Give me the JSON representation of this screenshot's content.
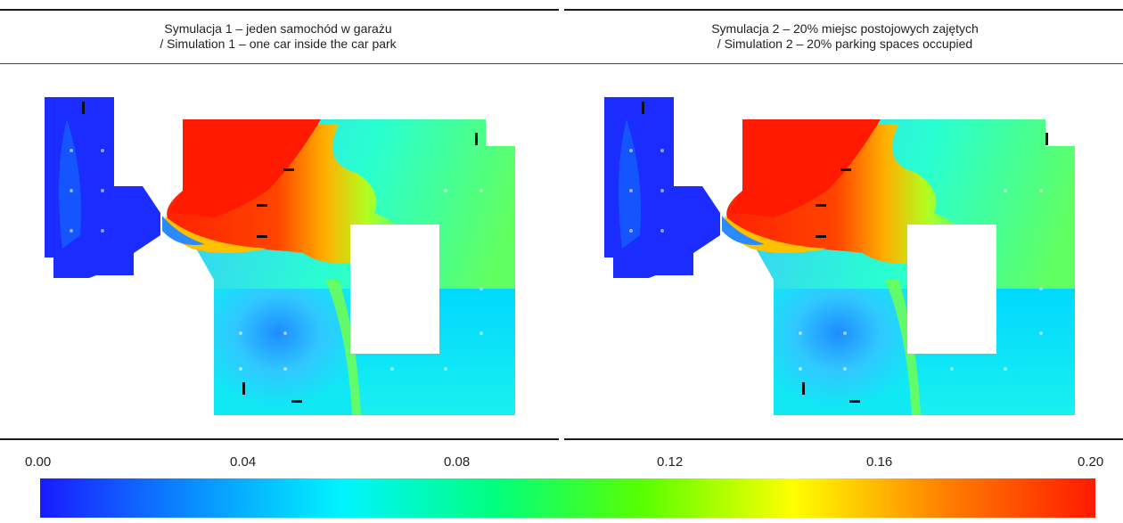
{
  "captions": {
    "sim1": {
      "line1": "Symulacja 1 – jeden samochód w garażu",
      "line2": "/ Simulation 1 – one car inside the car park"
    },
    "sim2": {
      "line1": "Symulacja 2 – 20% miejsc postojowych zajętych",
      "line2": "/ Simulation 2 – 20% parking spaces occupied"
    }
  },
  "colorbar": {
    "ticks": [
      "0.00",
      "0.04",
      "0.08",
      "0.12",
      "0.16",
      "0.20"
    ],
    "min": 0.0,
    "max": 0.2,
    "colors": [
      "#1a1aff",
      "#0a8cff",
      "#00f4ff",
      "#00ff80",
      "#59ff00",
      "#ffff00",
      "#ff8000",
      "#ff1a00"
    ]
  },
  "colors": {
    "background": "#ffffff",
    "rule": "#1a1a1a"
  }
}
